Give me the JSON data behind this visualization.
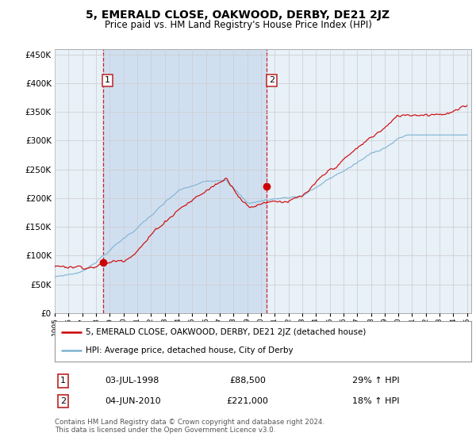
{
  "title": "5, EMERALD CLOSE, OAKWOOD, DERBY, DE21 2JZ",
  "subtitle": "Price paid vs. HM Land Registry's House Price Index (HPI)",
  "legend_line1": "5, EMERALD CLOSE, OAKWOOD, DERBY, DE21 2JZ (detached house)",
  "legend_line2": "HPI: Average price, detached house, City of Derby",
  "annotation1_date": "03-JUL-1998",
  "annotation1_price": "£88,500",
  "annotation1_hpi": "29% ↑ HPI",
  "annotation2_date": "04-JUN-2010",
  "annotation2_price": "£221,000",
  "annotation2_hpi": "18% ↑ HPI",
  "footer": "Contains HM Land Registry data © Crown copyright and database right 2024.\nThis data is licensed under the Open Government Licence v3.0.",
  "red_color": "#cc0000",
  "blue_color": "#7fb3d3",
  "bg_color": "#e8f0f8",
  "bg_span_color": "#d0dff0",
  "grid_color": "#cccccc",
  "vline_color": "#cc0000",
  "sale1_year": 1998.5,
  "sale1_value": 88500,
  "sale2_year": 2010.42,
  "sale2_value": 221000,
  "ylim_min": 0,
  "ylim_max": 460000,
  "yticks": [
    0,
    50000,
    100000,
    150000,
    200000,
    250000,
    300000,
    350000,
    400000,
    450000
  ]
}
